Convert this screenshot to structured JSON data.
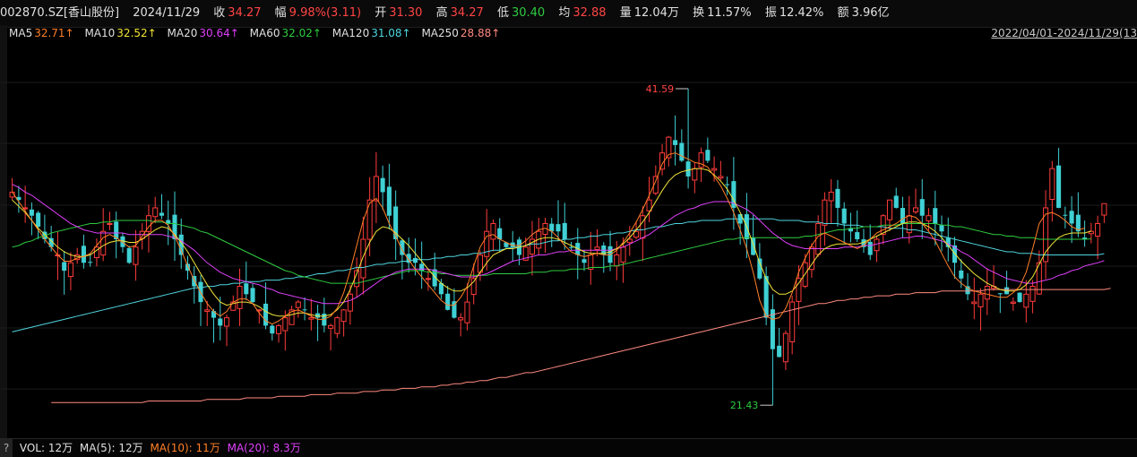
{
  "quote": {
    "code": "002870.SZ[香山股份]",
    "date": "2024/11/29",
    "close_label": "收",
    "close": "34.27",
    "change_label": "幅",
    "change": "9.98%(3.11)",
    "open_label": "开",
    "open": "31.30",
    "high_label": "高",
    "high": "34.27",
    "low_label": "低",
    "low": "30.40",
    "avg_label": "均",
    "avg": "32.88",
    "vol_label": "量",
    "vol": "12.04万",
    "turnover_label": "换",
    "turnover": "11.57%",
    "amplitude_label": "振",
    "amplitude": "12.42%",
    "amount_label": "额",
    "amount": "3.96亿"
  },
  "ma_legend": [
    {
      "label": "MA5",
      "value": "32.71↑",
      "color": "#ff7f27"
    },
    {
      "label": "MA10",
      "value": "32.52↑",
      "color": "#f2e338"
    },
    {
      "label": "MA20",
      "value": "30.64↑",
      "color": "#e040fb"
    },
    {
      "label": "MA60",
      "value": "32.02↑",
      "color": "#2ecc40"
    },
    {
      "label": "MA120",
      "value": "31.08↑",
      "color": "#4fd6e0"
    },
    {
      "label": "MA250",
      "value": "28.88↑",
      "color": "#ff8a80"
    }
  ],
  "date_range": "2022/04/01-2024/11/29(13",
  "volume_legend": {
    "help": "?",
    "vol": "VOL: 12万",
    "ma5": "MA(5): 12万",
    "ma10": "MA(10): 11万",
    "ma20": "MA(20): 8.3万"
  },
  "colors": {
    "up": "#ff3b3b",
    "down": "#3fd0d4",
    "ma5": "#ff7f27",
    "ma10": "#f2e338",
    "ma20": "#e040fb",
    "ma60": "#2ecc40",
    "ma120": "#4fd6e0",
    "ma250": "#ff8a80",
    "bg": "#000000"
  },
  "chart_data": {
    "type": "candlestick",
    "price_range": [
      19.5,
      44.5
    ],
    "annotations": {
      "max_label": "41.59",
      "min_label": "21.43",
      "max_value": 41.59,
      "min_value": 21.43,
      "max_index": 104,
      "min_index": 117
    },
    "close_path": [
      35.0,
      34.5,
      34.0,
      33.5,
      32.8,
      32.0,
      31.5,
      31.0,
      30.0,
      30.5,
      31.0,
      30.5,
      30.5,
      31.5,
      32.5,
      33.0,
      32.0,
      31.5,
      30.5,
      31.5,
      32.5,
      33.5,
      34.0,
      33.5,
      33.0,
      32.0,
      31.0,
      30.0,
      29.0,
      28.0,
      27.5,
      27.0,
      26.5,
      27.0,
      28.0,
      29.0,
      28.5,
      28.0,
      27.5,
      26.5,
      26.0,
      26.5,
      27.0,
      27.5,
      28.0,
      27.5,
      27.0,
      27.0,
      26.5,
      26.5,
      27.0,
      27.5,
      28.5,
      30.0,
      32.0,
      34.5,
      36.0,
      35.0,
      33.5,
      32.0,
      31.0,
      30.5,
      30.5,
      30.0,
      29.5,
      29.0,
      28.5,
      27.5,
      27.0,
      27.0,
      28.0,
      29.5,
      31.0,
      32.5,
      33.0,
      32.0,
      31.5,
      31.5,
      31.0,
      31.5,
      32.0,
      32.5,
      33.0,
      32.5,
      32.5,
      32.0,
      31.5,
      31.0,
      30.5,
      31.0,
      31.5,
      31.0,
      30.5,
      31.0,
      31.5,
      32.0,
      32.5,
      33.5,
      34.5,
      36.0,
      37.5,
      38.5,
      38.0,
      37.0,
      36.0,
      36.5,
      37.5,
      37.0,
      36.5,
      36.0,
      35.5,
      34.0,
      33.0,
      32.0,
      31.0,
      29.5,
      27.0,
      25.0,
      24.5,
      26.0,
      28.0,
      29.5,
      30.5,
      31.5,
      33.0,
      34.5,
      35.0,
      34.0,
      33.0,
      32.5,
      32.0,
      31.5,
      31.0,
      32.0,
      33.5,
      34.5,
      34.0,
      33.0,
      33.5,
      34.0,
      33.5,
      33.5,
      33.0,
      32.5,
      31.5,
      30.5,
      29.5,
      28.5,
      28.0,
      28.5,
      29.0,
      29.0,
      28.5,
      28.5,
      28.0,
      28.0,
      28.5,
      29.0,
      30.5,
      34.0,
      36.5,
      34.0,
      33.5,
      33.0,
      32.5,
      32.0,
      32.5,
      33.0,
      34.27
    ],
    "ma5_path": [
      35.0,
      34.4,
      33.8,
      33.2,
      32.6,
      32.0,
      31.5,
      31.0,
      30.6,
      30.6,
      30.8,
      30.9,
      31.1,
      31.6,
      32.1,
      32.3,
      32.1,
      31.8,
      31.5,
      31.6,
      32.2,
      32.8,
      33.2,
      33.2,
      32.9,
      32.2,
      31.3,
      30.3,
      29.4,
      28.6,
      27.9,
      27.4,
      27.1,
      27.4,
      28.0,
      28.2,
      28.2,
      27.9,
      27.3,
      26.8,
      26.6,
      26.8,
      27.1,
      27.4,
      27.5,
      27.3,
      27.1,
      26.9,
      26.9,
      27.1,
      27.6,
      28.6,
      30.0,
      31.6,
      33.2,
      34.3,
      34.6,
      34.0,
      33.0,
      32.2,
      31.3,
      30.7,
      30.1,
      29.6,
      29.1,
      28.6,
      28.1,
      27.8,
      27.8,
      28.3,
      29.0,
      30.3,
      31.5,
      32.2,
      32.3,
      32.0,
      31.8,
      31.6,
      31.6,
      31.9,
      32.3,
      32.6,
      32.7,
      32.5,
      32.1,
      31.6,
      31.2,
      31.0,
      30.9,
      31.0,
      31.1,
      31.0,
      31.0,
      31.3,
      31.8,
      32.4,
      33.1,
      33.9,
      34.8,
      35.7,
      36.8,
      37.4,
      37.5,
      37.3,
      37.1,
      36.9,
      36.8,
      36.6,
      36.0,
      35.4,
      34.6,
      33.7,
      32.6,
      31.4,
      29.9,
      28.1,
      27.1,
      26.9,
      27.0,
      27.6,
      28.6,
      29.9,
      30.8,
      31.6,
      32.2,
      32.4,
      32.2,
      32.0,
      31.8,
      31.6,
      31.4,
      31.6,
      32.0,
      32.4,
      32.6,
      32.8,
      33.0,
      33.3,
      33.5,
      33.4,
      33.0,
      32.5,
      31.9,
      31.1,
      30.3,
      29.6,
      29.2,
      28.9,
      28.7,
      28.6,
      28.5,
      28.4,
      28.3,
      28.3,
      28.6,
      29.0,
      29.9,
      31.4,
      33.0,
      33.6,
      33.7,
      33.5,
      33.2,
      32.8,
      32.6,
      32.71
    ],
    "ma10_path": [
      34.5,
      34.1,
      33.7,
      33.2,
      32.7,
      32.3,
      31.9,
      31.5,
      31.2,
      31.0,
      30.9,
      30.9,
      31.0,
      31.3,
      31.6,
      31.8,
      31.9,
      31.9,
      31.8,
      31.8,
      32.0,
      32.3,
      32.6,
      32.8,
      32.7,
      32.3,
      31.8,
      31.2,
      30.5,
      29.8,
      29.1,
      28.5,
      28.0,
      27.8,
      27.9,
      28.0,
      28.0,
      27.9,
      27.7,
      27.4,
      27.2,
      27.1,
      27.1,
      27.2,
      27.3,
      27.3,
      27.2,
      27.1,
      27.1,
      27.2,
      27.5,
      28.0,
      28.8,
      29.8,
      30.9,
      31.8,
      32.5,
      32.8,
      32.7,
      32.4,
      32.0,
      31.6,
      31.1,
      30.6,
      30.1,
      29.6,
      29.2,
      28.9,
      28.7,
      28.7,
      28.9,
      29.3,
      29.9,
      30.5,
      31.0,
      31.2,
      31.4,
      31.4,
      31.5,
      31.6,
      31.8,
      32.0,
      32.1,
      32.1,
      32.0,
      31.8,
      31.6,
      31.4,
      31.2,
      31.1,
      31.1,
      31.1,
      31.2,
      31.4,
      31.7,
      32.1,
      32.6,
      33.1,
      33.7,
      34.4,
      35.1,
      35.7,
      36.1,
      36.3,
      36.4,
      36.5,
      36.5,
      36.4,
      36.1,
      35.7,
      35.2,
      34.5,
      33.7,
      32.8,
      31.7,
      30.5,
      29.5,
      28.8,
      28.5,
      28.5,
      28.7,
      29.2,
      29.8,
      30.4,
      31.0,
      31.4,
      31.6,
      31.7,
      31.7,
      31.7,
      31.7,
      31.8,
      32.0,
      32.2,
      32.4,
      32.6,
      32.8,
      33.0,
      33.1,
      33.1,
      33.0,
      32.8,
      32.5,
      32.1,
      31.6,
      31.1,
      30.6,
      30.2,
      29.8,
      29.5,
      29.2,
      29.0,
      28.8,
      28.7,
      28.7,
      28.8,
      29.1,
      29.6,
      30.4,
      31.2,
      31.7,
      32.1,
      32.3,
      32.4,
      32.4,
      32.4,
      32.52
    ],
    "ma20_path": [
      35.5,
      35.3,
      35.0,
      34.8,
      34.5,
      34.2,
      33.9,
      33.6,
      33.3,
      33.0,
      32.8,
      32.6,
      32.5,
      32.4,
      32.4,
      32.4,
      32.4,
      32.4,
      32.3,
      32.3,
      32.3,
      32.3,
      32.3,
      32.3,
      32.2,
      32.1,
      31.9,
      31.6,
      31.3,
      30.9,
      30.5,
      30.2,
      29.9,
      29.7,
      29.5,
      29.4,
      29.3,
      29.2,
      29.1,
      28.9,
      28.8,
      28.6,
      28.5,
      28.4,
      28.3,
      28.2,
      28.1,
      28.0,
      27.9,
      27.9,
      27.9,
      28.0,
      28.1,
      28.3,
      28.6,
      28.9,
      29.2,
      29.5,
      29.7,
      29.9,
      30.0,
      30.1,
      30.1,
      30.1,
      30.1,
      30.0,
      29.9,
      29.8,
      29.7,
      29.6,
      29.6,
      29.6,
      29.7,
      29.8,
      30.0,
      30.2,
      30.4,
      30.6,
      30.7,
      30.8,
      30.9,
      31.0,
      31.0,
      31.1,
      31.2,
      31.2,
      31.3,
      31.3,
      31.3,
      31.3,
      31.3,
      31.3,
      31.3,
      31.4,
      31.5,
      31.7,
      31.9,
      32.1,
      32.3,
      32.6,
      32.9,
      33.2,
      33.5,
      33.7,
      33.9,
      34.0,
      34.2,
      34.3,
      34.4,
      34.4,
      34.4,
      34.3,
      34.1,
      33.9,
      33.6,
      33.2,
      32.8,
      32.4,
      32.1,
      31.8,
      31.6,
      31.5,
      31.4,
      31.4,
      31.4,
      31.4,
      31.4,
      31.4,
      31.5,
      31.5,
      31.5,
      31.6,
      31.6,
      31.7,
      31.8,
      31.9,
      32.0,
      32.1,
      32.1,
      32.2,
      32.2,
      32.1,
      32.0,
      31.9,
      31.7,
      31.5,
      31.2,
      31.0,
      30.7,
      30.4,
      30.1,
      29.9,
      29.7,
      29.5,
      29.4,
      29.3,
      29.2,
      29.2,
      29.3,
      29.4,
      29.5,
      29.7,
      29.8,
      30.0,
      30.1,
      30.3,
      30.4,
      30.5,
      30.64
    ],
    "ma60_path": [
      31.5,
      31.6,
      31.8,
      31.9,
      32.1,
      32.2,
      32.4,
      32.5,
      32.6,
      32.7,
      32.8,
      32.9,
      33.0,
      33.0,
      33.1,
      33.1,
      33.2,
      33.2,
      33.2,
      33.2,
      33.2,
      33.2,
      33.1,
      33.1,
      33.0,
      33.0,
      32.9,
      32.8,
      32.7,
      32.5,
      32.4,
      32.2,
      32.0,
      31.8,
      31.6,
      31.4,
      31.2,
      31.0,
      30.8,
      30.6,
      30.4,
      30.2,
      30.0,
      29.9,
      29.7,
      29.6,
      29.5,
      29.4,
      29.3,
      29.2,
      29.2,
      29.2,
      29.2,
      29.2,
      29.3,
      29.4,
      29.5,
      29.6,
      29.7,
      29.8,
      29.9,
      30.0,
      30.0,
      30.0,
      29.9,
      29.9,
      29.8,
      29.8,
      29.7,
      29.7,
      29.7,
      29.7,
      29.7,
      29.7,
      29.8,
      29.8,
      29.8,
      29.8,
      29.8,
      29.8,
      29.9,
      29.9,
      29.9,
      30.0,
      30.0,
      30.0,
      30.1,
      30.1,
      30.1,
      30.2,
      30.2,
      30.2,
      30.3,
      30.3,
      30.4,
      30.5,
      30.6,
      30.7,
      30.8,
      30.9,
      31.0,
      31.1,
      31.2,
      31.3,
      31.4,
      31.5,
      31.6,
      31.7,
      31.8,
      31.9,
      32.0,
      32.0,
      32.1,
      32.1,
      32.1,
      32.1,
      32.1,
      32.1,
      32.1,
      32.1,
      32.1,
      32.1,
      32.2,
      32.2,
      32.3,
      32.4,
      32.5,
      32.6,
      32.6,
      32.7,
      32.7,
      32.8,
      32.8,
      32.8,
      32.9,
      32.9,
      32.9,
      33.0,
      33.0,
      33.0,
      33.0,
      33.0,
      33.0,
      32.9,
      32.9,
      32.8,
      32.8,
      32.7,
      32.6,
      32.5,
      32.4,
      32.3,
      32.3,
      32.2,
      32.2,
      32.1,
      32.1,
      32.1,
      32.0,
      32.0,
      32.0,
      32.0,
      32.0,
      32.0,
      32.0,
      32.0,
      32.02
    ],
    "ma120_path": [
      26.1,
      26.2,
      26.3,
      26.4,
      26.5,
      26.6,
      26.7,
      26.8,
      26.9,
      27.0,
      27.1,
      27.2,
      27.3,
      27.4,
      27.5,
      27.6,
      27.7,
      27.8,
      27.9,
      28.0,
      28.1,
      28.2,
      28.3,
      28.4,
      28.5,
      28.6,
      28.7,
      28.8,
      28.9,
      28.9,
      29.0,
      29.0,
      29.1,
      29.1,
      29.2,
      29.2,
      29.3,
      29.3,
      29.3,
      29.4,
      29.4,
      29.4,
      29.5,
      29.5,
      29.6,
      29.6,
      29.7,
      29.8,
      29.8,
      29.9,
      30.0,
      30.0,
      30.1,
      30.2,
      30.2,
      30.3,
      30.4,
      30.4,
      30.5,
      30.5,
      30.6,
      30.6,
      30.7,
      30.7,
      30.7,
      30.8,
      30.8,
      30.9,
      30.9,
      31.0,
      31.0,
      31.1,
      31.1,
      31.2,
      31.3,
      31.3,
      31.4,
      31.5,
      31.5,
      31.6,
      31.7,
      31.7,
      31.8,
      31.9,
      31.9,
      32.0,
      32.0,
      32.1,
      32.1,
      32.2,
      32.2,
      32.3,
      32.3,
      32.4,
      32.4,
      32.5,
      32.6,
      32.6,
      32.7,
      32.8,
      32.8,
      32.9,
      33.0,
      33.0,
      33.1,
      33.1,
      33.2,
      33.2,
      33.2,
      33.2,
      33.3,
      33.3,
      33.3,
      33.3,
      33.3,
      33.3,
      33.3,
      33.3,
      33.2,
      33.2,
      33.2,
      33.2,
      33.1,
      33.1,
      33.1,
      33.0,
      33.0,
      33.0,
      32.9,
      32.9,
      32.9,
      32.8,
      32.8,
      32.8,
      32.8,
      32.7,
      32.7,
      32.7,
      32.6,
      32.6,
      32.5,
      32.4,
      32.3,
      32.2,
      32.1,
      32.0,
      31.9,
      31.8,
      31.7,
      31.6,
      31.5,
      31.4,
      31.3,
      31.2,
      31.2,
      31.1,
      31.1,
      31.1,
      31.0,
      31.0,
      31.0,
      31.0,
      31.0,
      31.0,
      31.0,
      31.0,
      31.0,
      31.0,
      31.08
    ],
    "ma250_path": [
      null,
      null,
      null,
      null,
      null,
      null,
      21.6,
      21.6,
      21.6,
      21.6,
      21.6,
      21.6,
      21.6,
      21.6,
      21.6,
      21.6,
      21.6,
      21.6,
      21.6,
      21.6,
      21.6,
      21.7,
      21.7,
      21.7,
      21.7,
      21.7,
      21.7,
      21.7,
      21.7,
      21.7,
      21.8,
      21.8,
      21.8,
      21.8,
      21.8,
      21.8,
      21.9,
      21.9,
      21.9,
      21.9,
      21.9,
      22.0,
      22.0,
      22.0,
      22.0,
      22.0,
      22.1,
      22.1,
      22.1,
      22.1,
      22.2,
      22.2,
      22.2,
      22.2,
      22.3,
      22.3,
      22.3,
      22.4,
      22.4,
      22.4,
      22.5,
      22.5,
      22.5,
      22.6,
      22.6,
      22.6,
      22.7,
      22.7,
      22.8,
      22.8,
      22.9,
      22.9,
      23.0,
      23.0,
      23.1,
      23.2,
      23.2,
      23.3,
      23.4,
      23.5,
      23.5,
      23.6,
      23.7,
      23.8,
      23.9,
      24.0,
      24.1,
      24.2,
      24.3,
      24.4,
      24.5,
      24.6,
      24.7,
      24.8,
      24.9,
      25.0,
      25.1,
      25.2,
      25.3,
      25.4,
      25.5,
      25.6,
      25.7,
      25.8,
      25.9,
      26.0,
      26.1,
      26.2,
      26.3,
      26.4,
      26.5,
      26.6,
      26.7,
      26.8,
      26.9,
      27.0,
      27.1,
      27.2,
      27.3,
      27.4,
      27.5,
      27.6,
      27.7,
      27.8,
      27.9,
      27.9,
      28.0,
      28.1,
      28.1,
      28.2,
      28.2,
      28.3,
      28.3,
      28.4,
      28.4,
      28.4,
      28.5,
      28.5,
      28.5,
      28.6,
      28.6,
      28.6,
      28.6,
      28.7,
      28.7,
      28.7,
      28.7,
      28.7,
      28.7,
      28.7,
      28.8,
      28.8,
      28.8,
      28.8,
      28.8,
      28.8,
      28.8,
      28.8,
      28.8,
      28.8,
      28.8,
      28.8,
      28.8,
      28.8,
      28.8,
      28.8,
      28.8,
      28.8,
      28.8,
      28.88
    ]
  }
}
